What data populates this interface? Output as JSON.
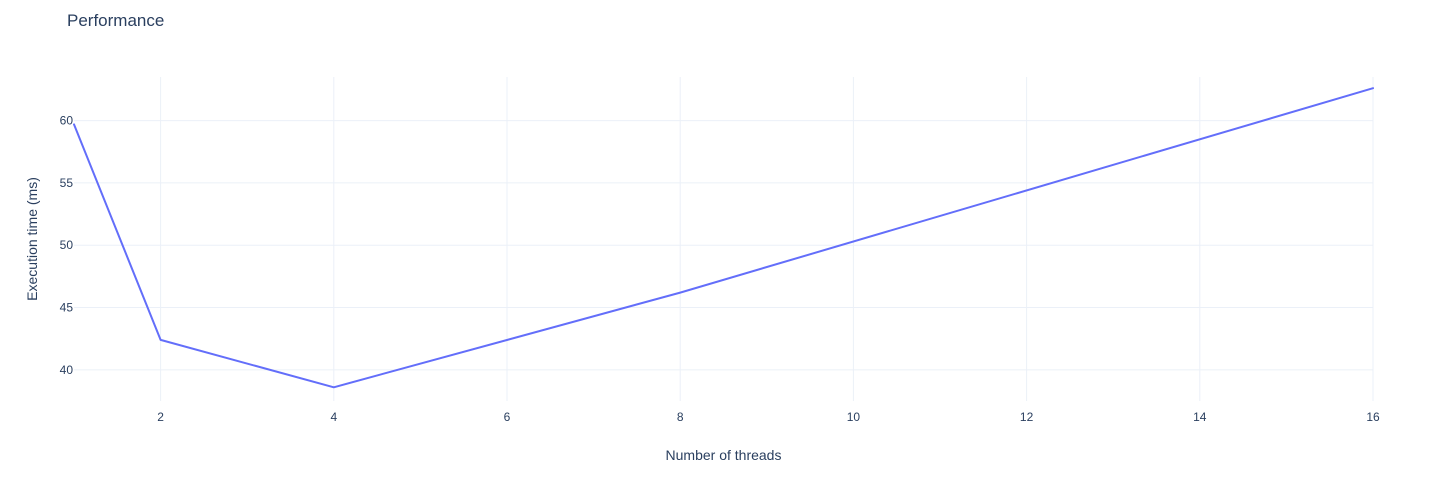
{
  "chart_data": {
    "type": "line",
    "title": "Performance",
    "xlabel": "Number of threads",
    "ylabel": "Execution time (ms)",
    "xlim": [
      1,
      16
    ],
    "ylim": [
      37.5,
      63.5
    ],
    "xticks": [
      2,
      4,
      6,
      8,
      10,
      12,
      14,
      16
    ],
    "yticks": [
      40,
      45,
      50,
      55,
      60
    ],
    "grid": true,
    "legend": "none",
    "series": [
      {
        "color": "#636efa",
        "x": [
          1,
          2,
          4,
          8,
          16
        ],
        "y": [
          59.7,
          42.4,
          38.6,
          46.2,
          62.6
        ]
      }
    ]
  }
}
